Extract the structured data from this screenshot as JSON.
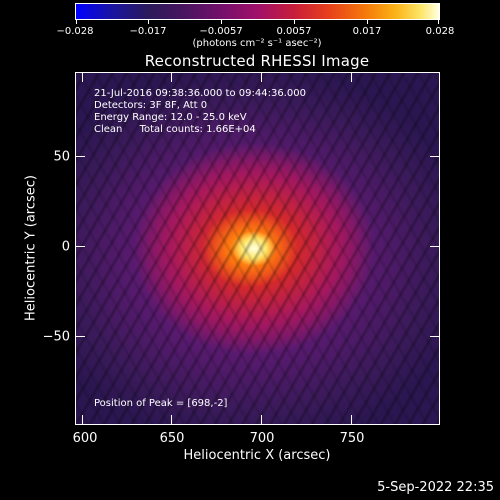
{
  "colorbar": {
    "tick_labels": [
      "−0.028",
      "−0.017",
      "−0.0057",
      "0.0057",
      "0.017",
      "0.028"
    ],
    "units": "(photons cm⁻² s⁻¹ asec⁻²)"
  },
  "plot": {
    "title": "Reconstructed RHESSI Image",
    "info": {
      "time_range": "21-Jul-2016 09:38:36.000 to 09:44:36.000",
      "detectors": "Detectors: 3F 8F, Att 0",
      "energy_range": "Energy Range: 12.0 - 25.0 keV",
      "clean_label": "Clean",
      "total_counts": "Total counts: 1.66E+04",
      "peak_position": "Position of Peak = [698,-2]"
    },
    "xaxis": {
      "title": "Heliocentric X (arcsec)",
      "tick_labels": [
        "600",
        "650",
        "700",
        "750"
      ],
      "range": [
        597,
        788
      ]
    },
    "yaxis": {
      "title": "Heliocentric Y (arcsec)",
      "tick_labels": [
        "50",
        "0",
        "−50"
      ],
      "range": [
        -98,
        94
      ]
    },
    "colors": {
      "peak": "#ffffe0",
      "core": "#ff7a10",
      "halo": "#a6185e",
      "background": "#2a1650"
    }
  },
  "footer": {
    "timestamp": "5-Sep-2022 22:35"
  }
}
